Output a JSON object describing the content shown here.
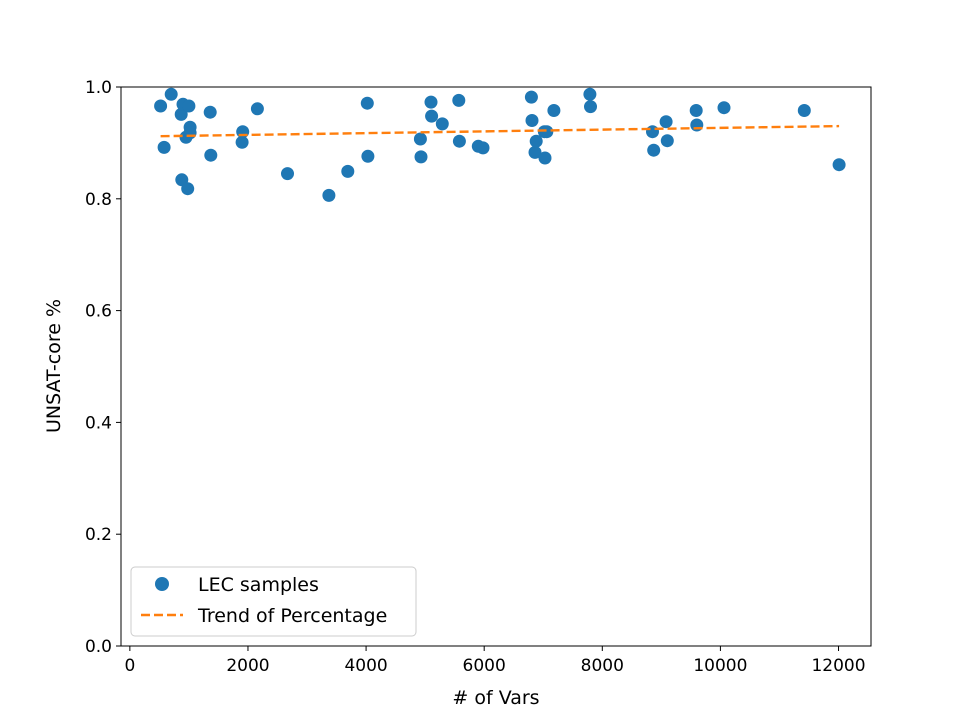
{
  "chart_data": {
    "type": "scatter",
    "xlabel": "# of Vars",
    "ylabel": "UNSAT-core %",
    "xlim": [
      -150,
      12550
    ],
    "ylim": [
      0.0,
      1.0
    ],
    "x_ticks": [
      0,
      2000,
      4000,
      6000,
      8000,
      10000,
      12000
    ],
    "x_tick_labels": [
      "0",
      "2000",
      "4000",
      "6000",
      "8000",
      "10000",
      "12000"
    ],
    "y_ticks": [
      0.0,
      0.2,
      0.4,
      0.6,
      0.8,
      1.0
    ],
    "y_tick_labels": [
      "0.0",
      "0.2",
      "0.4",
      "0.6",
      "0.8",
      "1.0"
    ],
    "grid": false,
    "legend_position": "lower-left",
    "series": [
      {
        "name": "LEC samples",
        "kind": "scatter",
        "color": "#1f77b4",
        "x": [
          520,
          580,
          700,
          870,
          880,
          900,
          950,
          980,
          1000,
          1020,
          1020,
          1360,
          1370,
          1900,
          1910,
          2160,
          2670,
          3370,
          3690,
          4020,
          4030,
          4920,
          4930,
          5100,
          5110,
          5290,
          5570,
          5580,
          5900,
          5980,
          6800,
          6810,
          6860,
          6880,
          7020,
          7030,
          7060,
          7180,
          7790,
          7800,
          8850,
          8870,
          9080,
          9100,
          9590,
          9600,
          10060,
          11420,
          12010
        ],
        "y": [
          0.966,
          0.892,
          0.987,
          0.951,
          0.834,
          0.969,
          0.91,
          0.818,
          0.966,
          0.928,
          0.918,
          0.955,
          0.878,
          0.901,
          0.92,
          0.961,
          0.845,
          0.806,
          0.849,
          0.971,
          0.876,
          0.907,
          0.875,
          0.973,
          0.948,
          0.934,
          0.976,
          0.903,
          0.894,
          0.891,
          0.982,
          0.94,
          0.883,
          0.903,
          0.92,
          0.873,
          0.92,
          0.958,
          0.987,
          0.965,
          0.92,
          0.887,
          0.938,
          0.904,
          0.958,
          0.932,
          0.963,
          0.958,
          0.861
        ]
      },
      {
        "name": "Trend of Percentage",
        "kind": "line",
        "color": "#ff7f0e",
        "x": [
          520,
          12010
        ],
        "y": [
          0.912,
          0.93
        ]
      }
    ]
  }
}
